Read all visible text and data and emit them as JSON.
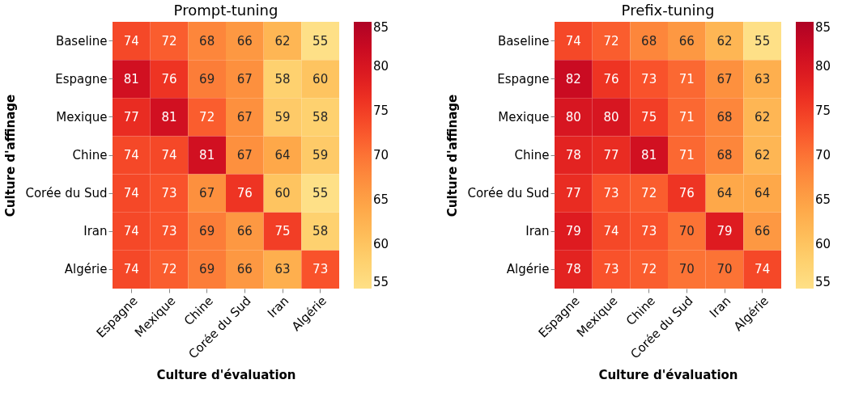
{
  "chart_data": [
    {
      "type": "heatmap",
      "title": "Prompt-tuning",
      "xlabel": "Culture d'évaluation",
      "ylabel": "Culture d'affinage",
      "categories": [
        "Espagne",
        "Mexique",
        "Chine",
        "Corée du Sud",
        "Iran",
        "Algérie"
      ],
      "y_categories": [
        "Baseline",
        "Espagne",
        "Mexique",
        "Chine",
        "Corée du Sud",
        "Iran",
        "Algérie"
      ],
      "cells": [
        [
          74,
          72,
          68,
          66,
          62,
          55
        ],
        [
          81,
          76,
          69,
          67,
          58,
          60
        ],
        [
          77,
          81,
          72,
          67,
          59,
          58
        ],
        [
          74,
          74,
          81,
          67,
          64,
          59
        ],
        [
          74,
          73,
          67,
          76,
          60,
          55
        ],
        [
          74,
          73,
          69,
          66,
          75,
          58
        ],
        [
          74,
          72,
          69,
          66,
          63,
          73
        ]
      ],
      "clim": [
        55,
        85
      ],
      "cticks": [
        55,
        60,
        65,
        70,
        75,
        80,
        85
      ],
      "data_labels": true
    },
    {
      "type": "heatmap",
      "title": "Prefix-tuning",
      "xlabel": "Culture d'évaluation",
      "ylabel": "Culture d'affinage",
      "categories": [
        "Espagne",
        "Mexique",
        "Chine",
        "Corée du Sud",
        "Iran",
        "Algérie"
      ],
      "y_categories": [
        "Baseline",
        "Espagne",
        "Mexique",
        "Chine",
        "Corée du Sud",
        "Iran",
        "Algérie"
      ],
      "cells": [
        [
          74,
          72,
          68,
          66,
          62,
          55
        ],
        [
          82,
          76,
          73,
          71,
          67,
          63
        ],
        [
          80,
          80,
          75,
          71,
          68,
          62
        ],
        [
          78,
          77,
          81,
          71,
          68,
          62
        ],
        [
          77,
          73,
          72,
          76,
          64,
          64
        ],
        [
          79,
          74,
          73,
          70,
          79,
          66
        ],
        [
          78,
          73,
          72,
          70,
          70,
          74
        ]
      ],
      "clim": [
        55,
        85
      ],
      "cticks": [
        55,
        60,
        65,
        70,
        75,
        80,
        85
      ],
      "data_labels": true
    }
  ]
}
